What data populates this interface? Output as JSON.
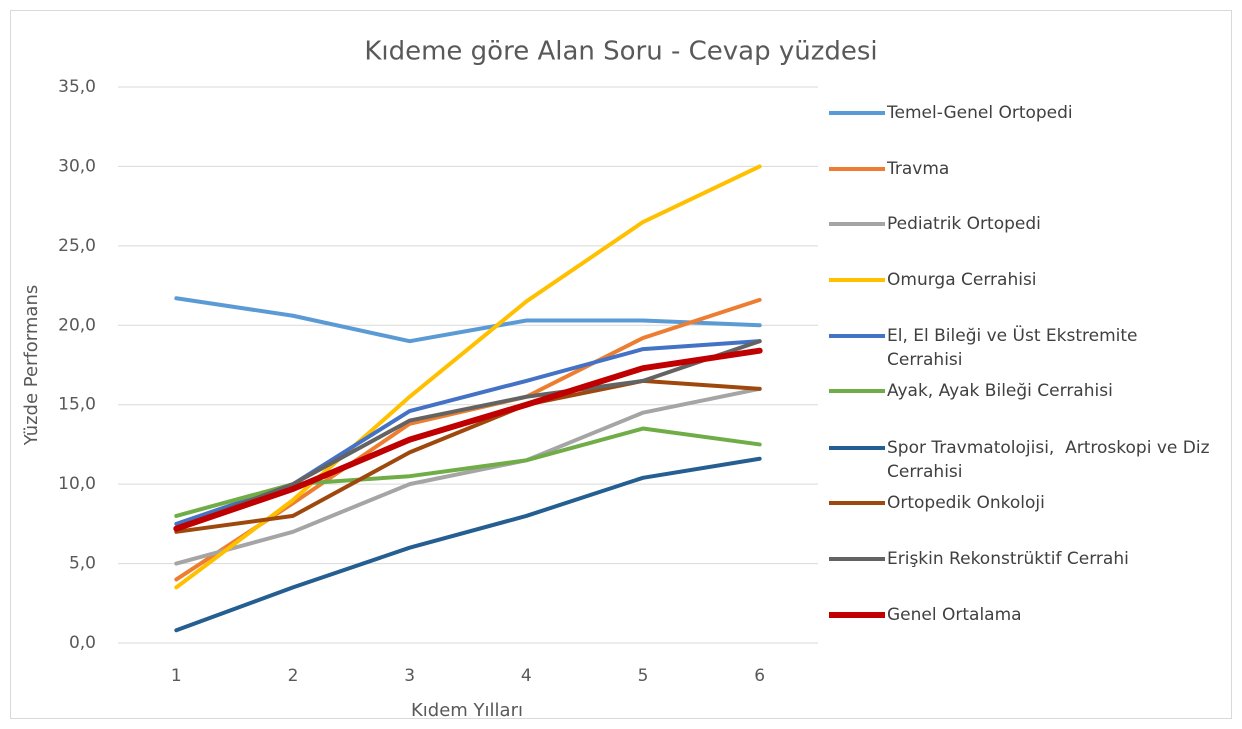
{
  "chart_data": {
    "type": "line",
    "title": "Kıdeme göre Alan Soru - Cevap yüzdesi",
    "x_label": "Kıdem Yılları",
    "y_label": "Yüzde Performans",
    "categories": [
      "1",
      "2",
      "3",
      "4",
      "5",
      "6"
    ],
    "ylim": [
      0,
      35
    ],
    "yticks": [
      {
        "value": 0,
        "label": "0,0"
      },
      {
        "value": 5,
        "label": "5,0"
      },
      {
        "value": 10,
        "label": "10,0"
      },
      {
        "value": 15,
        "label": "15,0"
      },
      {
        "value": 20,
        "label": "20,0"
      },
      {
        "value": 25,
        "label": "25,0"
      },
      {
        "value": 30,
        "label": "30,0"
      },
      {
        "value": 35,
        "label": "35,0"
      }
    ],
    "grid": true,
    "legend": "right",
    "series": [
      {
        "name": "Temel-Genel Ortopedi",
        "color": "#5b9bd5",
        "values": [
          21.7,
          20.6,
          19.0,
          20.3,
          20.3,
          20.0
        ]
      },
      {
        "name": "Travma",
        "color": "#ed7d31",
        "values": [
          4.0,
          8.8,
          13.8,
          15.5,
          19.2,
          21.6
        ]
      },
      {
        "name": "Pediatrik Ortopedi",
        "color": "#a5a5a5",
        "values": [
          5.0,
          7.0,
          10.0,
          11.5,
          14.5,
          16.0
        ]
      },
      {
        "name": "Omurga Cerrahisi",
        "color": "#ffc000",
        "values": [
          3.5,
          9.0,
          15.5,
          21.5,
          26.5,
          30.0
        ]
      },
      {
        "name": "El, El Bileği ve Üst Ekstremite Cerrahisi",
        "color": "#4472c4",
        "values": [
          7.5,
          10.0,
          14.6,
          16.5,
          18.5,
          19.0
        ]
      },
      {
        "name": "Ayak, Ayak Bileği Cerrahisi",
        "color": "#70ad47",
        "values": [
          8.0,
          10.0,
          10.5,
          11.5,
          13.5,
          12.5
        ]
      },
      {
        "name": "Spor Travmatolojisi,  Artroskopi ve Diz Cerrahisi",
        "color": "#255e91",
        "values": [
          0.8,
          3.5,
          6.0,
          8.0,
          10.4,
          11.6
        ]
      },
      {
        "name": "Ortopedik Onkoloji",
        "color": "#9e480e",
        "values": [
          7.0,
          8.0,
          12.0,
          15.0,
          16.5,
          16.0
        ]
      },
      {
        "name": "Erişkin Rekonstrüktif Cerrahi",
        "color": "#636363",
        "values": [
          7.2,
          10.0,
          14.0,
          15.5,
          16.5,
          19.0
        ]
      },
      {
        "name": "Genel Ortalama",
        "color": "#c00000",
        "values": [
          7.2,
          9.7,
          12.8,
          15.0,
          17.3,
          18.4
        ]
      }
    ]
  }
}
